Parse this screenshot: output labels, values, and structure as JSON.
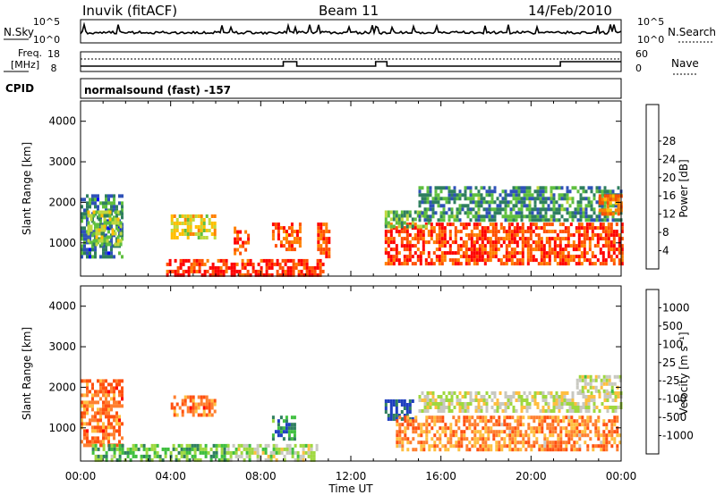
{
  "header": {
    "station": "Inuvik (fitACF)",
    "beam": "Beam 11",
    "date": "14/Feb/2010"
  },
  "top_panels": {
    "nsky_label": "N.Sky",
    "nsearch_label": "N.Search",
    "nsky_ticks": [
      "10^5",
      "10^0"
    ],
    "nsearch_ticks": [
      "10^5",
      "10^0"
    ],
    "freq_label": "Freq.",
    "freq_unit": "[MHz]",
    "freq_ticks": [
      "18",
      "8"
    ],
    "nave_label": "Nave",
    "nave_ticks": [
      "60",
      "0"
    ],
    "cpid_label": "CPID",
    "cpid_value": "normalsound (fast) -157"
  },
  "chart_data": [
    {
      "type": "heatmap",
      "panel": "power",
      "ylabel": "Slant Range [km]",
      "xlabel": "",
      "ylim": [
        180,
        4500
      ],
      "yticks": [
        1000,
        2000,
        3000,
        4000
      ],
      "xlim": [
        0,
        24
      ],
      "colorbar": {
        "label": "Power [dB]",
        "ticks": [
          "4",
          "8",
          "12",
          "16",
          "20",
          "24",
          "28"
        ],
        "colors": [
          "#0000ff",
          "#2f52b8",
          "#2f7f5f",
          "#5fbf3f",
          "#bfd83f",
          "#ffbf00",
          "#ff8000",
          "#ff5000",
          "#ff0000"
        ]
      },
      "regions": [
        {
          "t": [
            0.0,
            1.9
          ],
          "r": [
            700,
            2200
          ],
          "level": 0.25
        },
        {
          "t": [
            0.3,
            1.8
          ],
          "r": [
            1000,
            1800
          ],
          "level": 0.45
        },
        {
          "t": [
            3.8,
            10.8
          ],
          "r": [
            200,
            600
          ],
          "level": 0.9
        },
        {
          "t": [
            4.0,
            6.0
          ],
          "r": [
            1100,
            1700
          ],
          "level": 0.55
        },
        {
          "t": [
            6.8,
            7.5
          ],
          "r": [
            700,
            1400
          ],
          "level": 0.85
        },
        {
          "t": [
            8.5,
            9.8
          ],
          "r": [
            800,
            1500
          ],
          "level": 0.8
        },
        {
          "t": [
            10.5,
            11.0
          ],
          "r": [
            700,
            1500
          ],
          "level": 0.8
        },
        {
          "t": [
            13.5,
            24.0
          ],
          "r": [
            500,
            1500
          ],
          "level": 0.85
        },
        {
          "t": [
            13.5,
            15.5
          ],
          "r": [
            1400,
            1800
          ],
          "level": 0.4
        },
        {
          "t": [
            15.0,
            24.0
          ],
          "r": [
            1600,
            2400
          ],
          "level": 0.3
        },
        {
          "t": [
            23.0,
            24.0
          ],
          "r": [
            1700,
            2200
          ],
          "level": 0.75
        }
      ]
    },
    {
      "type": "heatmap",
      "panel": "velocity",
      "ylabel": "Slant Range [km]",
      "xlabel": "Time UT",
      "ylim": [
        180,
        4500
      ],
      "yticks": [
        1000,
        2000,
        3000,
        4000
      ],
      "xlim": [
        0,
        24
      ],
      "xticks": [
        "00:00",
        "04:00",
        "08:00",
        "12:00",
        "16:00",
        "20:00",
        "00:00"
      ],
      "colorbar": {
        "label": "Velocity [m s⁻¹]",
        "ticks": [
          "1000",
          "500",
          "100",
          "25",
          "-25",
          "-100",
          "-500",
          "-1000"
        ],
        "colors": [
          "#1f3fbf",
          "#2f7f5f",
          "#3fbf3f",
          "#9fd83f",
          "#c8c8c0",
          "#ffbf40",
          "#ff8030",
          "#ff5010",
          "#ff0000"
        ]
      },
      "regions": [
        {
          "t": [
            0.0,
            1.9
          ],
          "r": [
            600,
            2200
          ],
          "level": 0.75
        },
        {
          "t": [
            0.5,
            6.5
          ],
          "r": [
            200,
            600
          ],
          "level": 0.3
        },
        {
          "t": [
            4.0,
            6.0
          ],
          "r": [
            1300,
            1800
          ],
          "level": 0.75
        },
        {
          "t": [
            6.5,
            10.5
          ],
          "r": [
            200,
            600
          ],
          "level": 0.45
        },
        {
          "t": [
            8.5,
            9.5
          ],
          "r": [
            700,
            1300
          ],
          "level": 0.2
        },
        {
          "t": [
            13.5,
            14.8
          ],
          "r": [
            1200,
            1700
          ],
          "level": 0.05
        },
        {
          "t": [
            14.0,
            24.0
          ],
          "r": [
            500,
            1300
          ],
          "level": 0.7
        },
        {
          "t": [
            15.0,
            24.0
          ],
          "r": [
            1400,
            1900
          ],
          "level": 0.5
        },
        {
          "t": [
            22.0,
            24.0
          ],
          "r": [
            1900,
            2300
          ],
          "level": 0.45
        }
      ]
    }
  ]
}
